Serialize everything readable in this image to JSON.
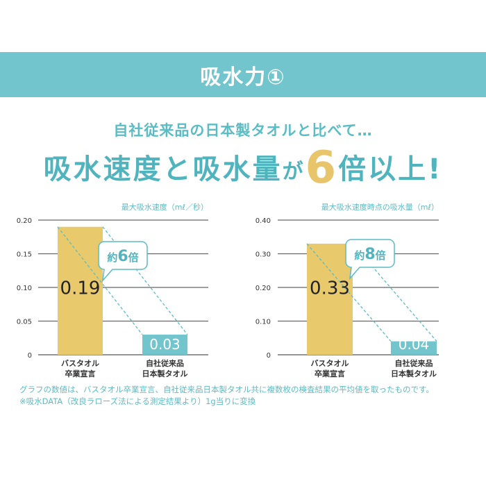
{
  "banner": {
    "title": "吸水力①"
  },
  "subtitle": "自社従来品の日本製タオルと比べて…",
  "headline": {
    "pre": "吸水速度と吸水量",
    "ga": "が",
    "num": "6",
    "post": "倍以上!"
  },
  "colors": {
    "teal": "#72c5cc",
    "gold": "#e8c96c",
    "text_teal": "#4fb4bd"
  },
  "chart_data": [
    {
      "type": "bar",
      "title": "最大吸水速度（mℓ／秒）",
      "categories": [
        [
          "バスタオル",
          "卒業宣言"
        ],
        [
          "自社従来品",
          "日本製タオル"
        ]
      ],
      "values": [
        0.19,
        0.03
      ],
      "value_labels": [
        "0.19",
        "0.03"
      ],
      "ylim": [
        0,
        0.2
      ],
      "yticks": [
        "0",
        "0.05",
        "0.10",
        "0.15",
        "0.20"
      ],
      "callout": {
        "pre": "約",
        "num": "6",
        "post": "倍"
      },
      "grid": true
    },
    {
      "type": "bar",
      "title": "最大吸水速度時点の吸水量（mℓ）",
      "categories": [
        [
          "バスタオル",
          "卒業宣言"
        ],
        [
          "自社従来品",
          "日本製タオル"
        ]
      ],
      "values": [
        0.33,
        0.04
      ],
      "value_labels": [
        "0.33",
        "0.04"
      ],
      "ylim": [
        0,
        0.4
      ],
      "yticks": [
        "0",
        "0.10",
        "0.20",
        "0.30",
        "0.40"
      ],
      "callout": {
        "pre": "約",
        "num": "8",
        "post": "倍"
      },
      "grid": true
    }
  ],
  "notes": [
    "グラフの数値は、バスタオル卒業宣言、自社従来品日本製タオル共に複数枚の検査結果の平均値を取ったものです。",
    "※吸水DATA（改良ラローズ法による測定結果より）1g当りに変換"
  ]
}
